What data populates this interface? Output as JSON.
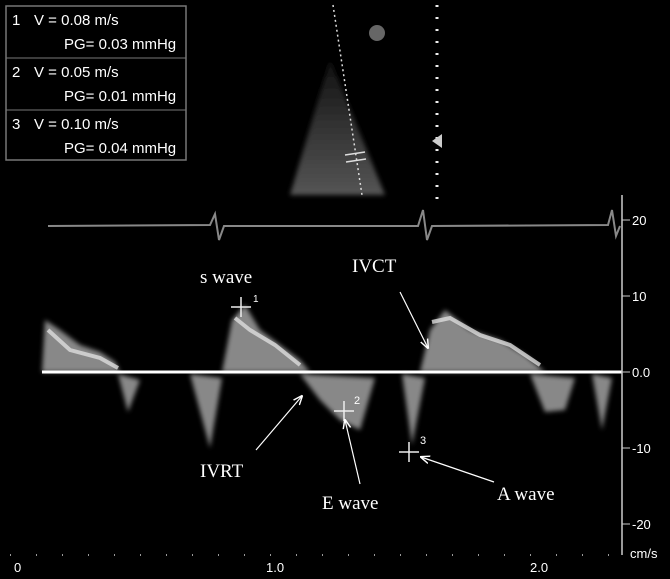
{
  "measurements": [
    {
      "index": "1",
      "velocity": "V  = 0.08 m/s",
      "gradient": "PG= 0.03 mmHg"
    },
    {
      "index": "2",
      "velocity": "V  = 0.05 m/s",
      "gradient": "PG= 0.01 mmHg"
    },
    {
      "index": "3",
      "velocity": "V  = 0.10 m/s",
      "gradient": "PG= 0.04 mmHg"
    }
  ],
  "annotations": {
    "s_wave": "s wave",
    "ivct": "IVCT",
    "ivrt": "IVRT",
    "e_wave": "E wave",
    "a_wave": "A wave"
  },
  "markers": [
    "1",
    "2",
    "3"
  ],
  "velocity_scale": {
    "ticks": [
      "20",
      "10",
      "0.0",
      "-10",
      "-20"
    ],
    "unit": "cm/s"
  },
  "time_scale": {
    "ticks": [
      "0",
      "1.0",
      "2.0"
    ]
  }
}
